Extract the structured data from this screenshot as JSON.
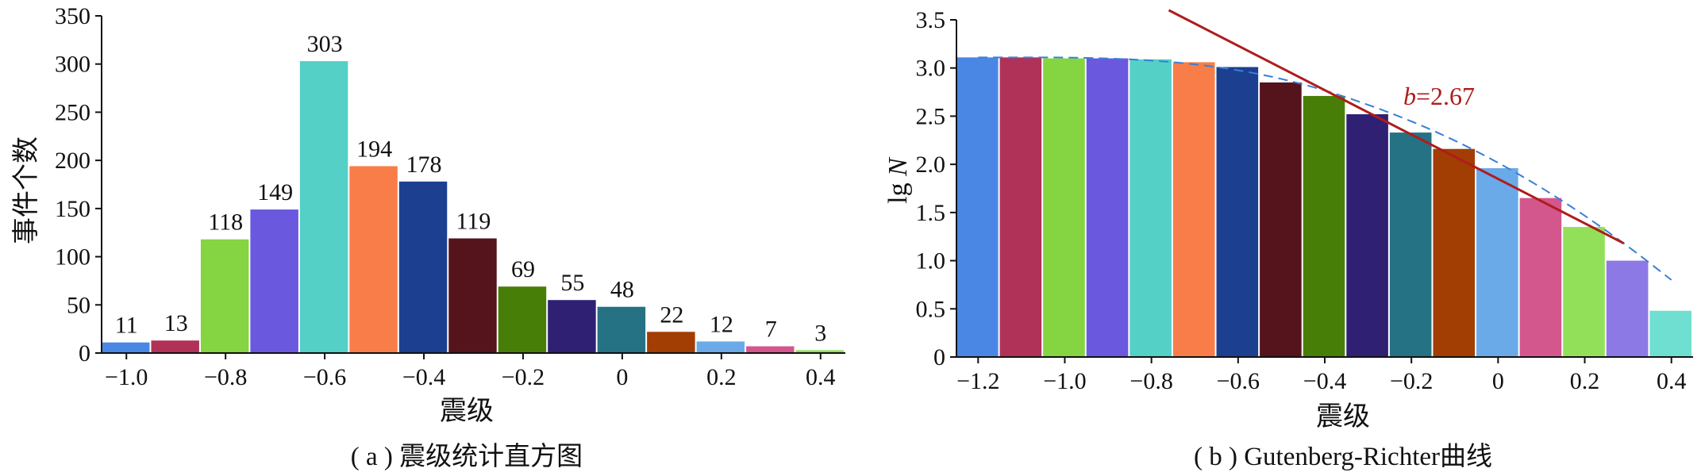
{
  "chart_data": [
    {
      "type": "bar",
      "caption": "( a ) 震级统计直方图",
      "xlabel": "震级",
      "ylabel": "事件个数",
      "xlim": [
        -1.05,
        0.45
      ],
      "ylim": [
        0,
        350
      ],
      "bin_width": 0.1,
      "x": [
        -1.0,
        -0.9,
        -0.8,
        -0.7,
        -0.6,
        -0.5,
        -0.4,
        -0.3,
        -0.2,
        -0.1,
        0.0,
        0.1,
        0.2,
        0.3,
        0.4
      ],
      "values": [
        11,
        13,
        118,
        149,
        303,
        194,
        178,
        119,
        69,
        55,
        48,
        22,
        12,
        7,
        3
      ],
      "bar_labels": [
        "11",
        "13",
        "118",
        "149",
        "303",
        "194",
        "178",
        "119",
        "69",
        "55",
        "48",
        "22",
        "12",
        "7",
        "3"
      ],
      "xticks": [
        -1.0,
        -0.8,
        -0.6,
        -0.4,
        -0.2,
        0,
        0.2,
        0.4
      ],
      "xtick_labels": [
        "−1.0",
        "−0.8",
        "−0.6",
        "−0.4",
        "−0.2",
        "0",
        "0.2",
        "0.4"
      ],
      "yticks": [
        0,
        50,
        100,
        150,
        200,
        250,
        300,
        350
      ],
      "ytick_labels": [
        "0",
        "50",
        "100",
        "150",
        "200",
        "250",
        "300",
        "350"
      ],
      "colors": [
        "#4a87e4",
        "#b13258",
        "#84d541",
        "#6a58df",
        "#54d0c6",
        "#f87d48",
        "#1c3f90",
        "#55131c",
        "#477e08",
        "#2f2074",
        "#257285",
        "#a23d03",
        "#6aaae8",
        "#d3578d",
        "#92e05a"
      ],
      "grid": false
    },
    {
      "type": "bar",
      "caption": "( b ) Gutenberg-Richter曲线",
      "xlabel": "震级",
      "ylabel_main": "lg ",
      "ylabel_italic": "N",
      "xlim": [
        -1.25,
        0.45
      ],
      "ylim": [
        0,
        3.5
      ],
      "bin_width": 0.1,
      "x": [
        -1.2,
        -1.1,
        -1.0,
        -0.9,
        -0.8,
        -0.7,
        -0.6,
        -0.5,
        -0.4,
        -0.3,
        -0.2,
        -0.1,
        0.0,
        0.1,
        0.2,
        0.3,
        0.4
      ],
      "values": [
        3.11,
        3.11,
        3.1,
        3.1,
        3.09,
        3.06,
        3.01,
        2.85,
        2.71,
        2.52,
        2.33,
        2.16,
        1.96,
        1.65,
        1.35,
        1.0,
        0.48
      ],
      "xticks": [
        -1.2,
        -1.0,
        -0.8,
        -0.6,
        -0.4,
        -0.2,
        0,
        0.2,
        0.4
      ],
      "xtick_labels": [
        "−1.2",
        "−1.0",
        "−0.8",
        "−0.6",
        "−0.4",
        "−0.2",
        "0",
        "0.2",
        "0.4"
      ],
      "yticks": [
        0,
        0.5,
        1.0,
        1.5,
        2.0,
        2.5,
        3.0,
        3.5
      ],
      "ytick_labels": [
        "0",
        "0.5",
        "1.0",
        "1.5",
        "2.0",
        "2.5",
        "3.0",
        "3.5"
      ],
      "colors": [
        "#4a87e4",
        "#b13258",
        "#84d541",
        "#6a58df",
        "#54d0c6",
        "#f87d48",
        "#1c3f90",
        "#55131c",
        "#477e08",
        "#2f2074",
        "#257285",
        "#a23d03",
        "#6aaae8",
        "#d3578d",
        "#92e05a",
        "#8d79e6",
        "#6fdfd1"
      ],
      "fit_line": {
        "x": [
          -0.76,
          0.29
        ],
        "y": [
          3.6,
          1.18
        ],
        "color": "#b01c1c"
      },
      "b_value_label_italic": "b",
      "b_value_label_rest": "=2.67",
      "fit_curve": {
        "x": [
          -1.2,
          -1.1,
          -1.0,
          -0.9,
          -0.8,
          -0.7,
          -0.6,
          -0.5,
          -0.4,
          -0.3,
          -0.2,
          -0.1,
          0.0,
          0.1,
          0.2,
          0.3,
          0.4
        ],
        "y": [
          3.11,
          3.11,
          3.11,
          3.1,
          3.08,
          3.04,
          2.98,
          2.89,
          2.77,
          2.62,
          2.45,
          2.25,
          2.02,
          1.76,
          1.47,
          1.15,
          0.8
        ],
        "color": "#3a7fd6"
      },
      "grid": false
    }
  ]
}
